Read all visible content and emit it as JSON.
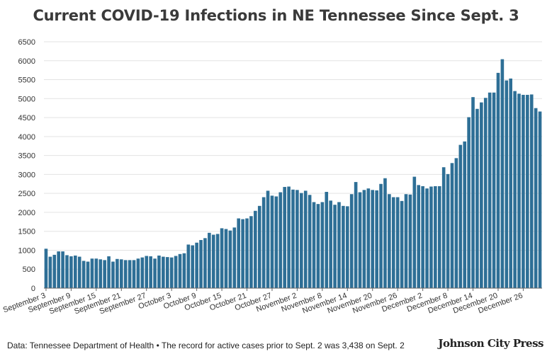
{
  "chart_data": {
    "type": "bar",
    "title": "Current COVID-19 Infections in NE Tennessee Since Sept. 3",
    "xlabel": "",
    "ylabel": "",
    "ylim": [
      0,
      6500
    ],
    "yticks": [
      0,
      500,
      1000,
      1500,
      2000,
      2500,
      3000,
      3500,
      4000,
      4500,
      5000,
      5500,
      6000,
      6500
    ],
    "grid": true,
    "bar_color": "#2e6f96",
    "first_date": "September 3",
    "tick_labels": [
      {
        "index": 0,
        "label": "September 3"
      },
      {
        "index": 6,
        "label": "September 9"
      },
      {
        "index": 12,
        "label": "September 15"
      },
      {
        "index": 18,
        "label": "September 21"
      },
      {
        "index": 24,
        "label": "September 27"
      },
      {
        "index": 30,
        "label": "October 3"
      },
      {
        "index": 36,
        "label": "October 9"
      },
      {
        "index": 42,
        "label": "October 15"
      },
      {
        "index": 48,
        "label": "October 21"
      },
      {
        "index": 54,
        "label": "October 27"
      },
      {
        "index": 60,
        "label": "November 2"
      },
      {
        "index": 66,
        "label": "November 8"
      },
      {
        "index": 72,
        "label": "November 14"
      },
      {
        "index": 78,
        "label": "November 20"
      },
      {
        "index": 84,
        "label": "November 26"
      },
      {
        "index": 90,
        "label": "December 2"
      },
      {
        "index": 96,
        "label": "December 8"
      },
      {
        "index": 102,
        "label": "December 14"
      },
      {
        "index": 108,
        "label": "December 20"
      },
      {
        "index": 114,
        "label": "December 26"
      }
    ],
    "values": [
      1040,
      830,
      880,
      970,
      970,
      870,
      840,
      860,
      830,
      720,
      700,
      780,
      780,
      760,
      740,
      840,
      700,
      770,
      760,
      740,
      740,
      740,
      780,
      810,
      850,
      840,
      780,
      860,
      830,
      820,
      810,
      850,
      900,
      920,
      1150,
      1130,
      1200,
      1270,
      1320,
      1460,
      1410,
      1430,
      1580,
      1560,
      1520,
      1600,
      1840,
      1820,
      1840,
      1900,
      2040,
      2170,
      2400,
      2570,
      2440,
      2420,
      2530,
      2670,
      2680,
      2600,
      2590,
      2510,
      2570,
      2460,
      2270,
      2220,
      2270,
      2540,
      2310,
      2200,
      2270,
      2170,
      2160,
      2480,
      2800,
      2530,
      2590,
      2630,
      2590,
      2580,
      2750,
      2900,
      2480,
      2400,
      2400,
      2300,
      2480,
      2470,
      2940,
      2720,
      2690,
      2630,
      2680,
      2690,
      2690,
      3190,
      3010,
      3300,
      3430,
      3780,
      3870,
      4510,
      5040,
      4730,
      4900,
      5020,
      5160,
      5160,
      5680,
      6040,
      5480,
      5530,
      5200,
      5130,
      5100,
      5100,
      5110,
      4750,
      4660
    ]
  },
  "footer": {
    "source": "Data: Tennessee Department of Health • The record for active cases prior to Sept. 2 was 3,438 on Sept. 2",
    "brand": "Johnson City Press"
  }
}
